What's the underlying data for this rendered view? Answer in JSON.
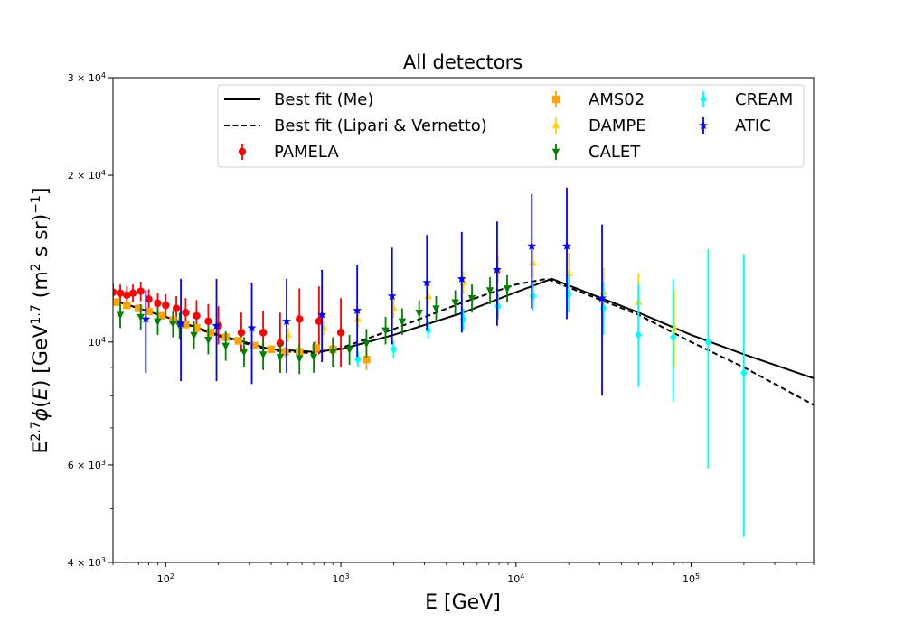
{
  "chart_data": {
    "type": "scatter",
    "title": "All detectors",
    "xlabel": "E [GeV]",
    "ylabel": "E^2.7 φ(E) [GeV^1.7 (m^2 s sr)^-1]",
    "xscale": "log",
    "yscale": "log",
    "xlim": [
      50,
      500000
    ],
    "ylim": [
      4000,
      30000
    ],
    "x_tick_labels": [
      "10^2",
      "10^3",
      "10^4",
      "10^5"
    ],
    "y_tick_labels": [
      "4 × 10^3",
      "6 × 10^3",
      "10^4",
      "2 × 10^4",
      "3 × 10^4"
    ],
    "grid": false,
    "legend_position": "top",
    "lines": [
      {
        "name": "Best fit (Me)",
        "style": "solid",
        "color": "#000000",
        "x": [
          50,
          100,
          200,
          400,
          700,
          1000,
          2000,
          5000,
          10000,
          16000,
          50000,
          100000,
          200000,
          500000
        ],
        "y": [
          11900,
          11100,
          10300,
          9700,
          9600,
          9700,
          10300,
          11300,
          12300,
          13000,
          11300,
          10300,
          9500,
          8600
        ]
      },
      {
        "name": "Best fit (Lipari & Vernetto)",
        "style": "dashed",
        "color": "#000000",
        "x": [
          50,
          100,
          200,
          400,
          700,
          1000,
          2000,
          5000,
          10000,
          15000,
          50000,
          100000,
          200000,
          500000
        ],
        "y": [
          11900,
          11100,
          10250,
          9650,
          9550,
          9750,
          10550,
          11800,
          12700,
          13000,
          11200,
          10000,
          9000,
          7700
        ]
      }
    ],
    "series": [
      {
        "name": "PAMELA",
        "color": "#ff0000",
        "marker": "circle",
        "points": [
          {
            "x": 50,
            "y": 12300,
            "lo": 11900,
            "hi": 12800
          },
          {
            "x": 55,
            "y": 12250,
            "lo": 11800,
            "hi": 12700
          },
          {
            "x": 60,
            "y": 12150,
            "lo": 11700,
            "hi": 12600
          },
          {
            "x": 65,
            "y": 12250,
            "lo": 11800,
            "hi": 12700
          },
          {
            "x": 72,
            "y": 12350,
            "lo": 11850,
            "hi": 12850
          },
          {
            "x": 80,
            "y": 11950,
            "lo": 11450,
            "hi": 12450
          },
          {
            "x": 90,
            "y": 11750,
            "lo": 11250,
            "hi": 12250
          },
          {
            "x": 100,
            "y": 11650,
            "lo": 11100,
            "hi": 12200
          },
          {
            "x": 115,
            "y": 11500,
            "lo": 10900,
            "hi": 12100
          },
          {
            "x": 130,
            "y": 11300,
            "lo": 10650,
            "hi": 12000
          },
          {
            "x": 150,
            "y": 11150,
            "lo": 10450,
            "hi": 11900
          },
          {
            "x": 175,
            "y": 10900,
            "lo": 10150,
            "hi": 11700
          },
          {
            "x": 200,
            "y": 10700,
            "lo": 9900,
            "hi": 11600
          },
          {
            "x": 270,
            "y": 10400,
            "lo": 9600,
            "hi": 11300
          },
          {
            "x": 360,
            "y": 10400,
            "lo": 9500,
            "hi": 11400
          },
          {
            "x": 450,
            "y": 9950,
            "lo": 8800,
            "hi": 11300
          },
          {
            "x": 580,
            "y": 11000,
            "lo": 9700,
            "hi": 12500
          },
          {
            "x": 750,
            "y": 10900,
            "lo": 9500,
            "hi": 12600
          },
          {
            "x": 1000,
            "y": 10400,
            "lo": 9000,
            "hi": 12000
          }
        ]
      },
      {
        "name": "AMS02",
        "color": "#ffa500",
        "marker": "square",
        "points": [
          {
            "x": 52,
            "y": 11800,
            "lo": 11700,
            "hi": 11900
          },
          {
            "x": 60,
            "y": 11650,
            "lo": 11550,
            "hi": 11750
          },
          {
            "x": 70,
            "y": 11500,
            "lo": 11400,
            "hi": 11600
          },
          {
            "x": 80,
            "y": 11350,
            "lo": 11250,
            "hi": 11450
          },
          {
            "x": 95,
            "y": 11150,
            "lo": 11050,
            "hi": 11250
          },
          {
            "x": 110,
            "y": 10950,
            "lo": 10850,
            "hi": 11050
          },
          {
            "x": 130,
            "y": 10750,
            "lo": 10650,
            "hi": 10850
          },
          {
            "x": 150,
            "y": 10600,
            "lo": 10500,
            "hi": 10700
          },
          {
            "x": 180,
            "y": 10400,
            "lo": 10300,
            "hi": 10500
          },
          {
            "x": 220,
            "y": 10200,
            "lo": 10100,
            "hi": 10300
          },
          {
            "x": 260,
            "y": 10050,
            "lo": 9950,
            "hi": 10150
          },
          {
            "x": 320,
            "y": 9850,
            "lo": 9700,
            "hi": 10000
          },
          {
            "x": 400,
            "y": 9700,
            "lo": 9550,
            "hi": 9850
          },
          {
            "x": 480,
            "y": 9600,
            "lo": 9400,
            "hi": 9800
          },
          {
            "x": 580,
            "y": 9600,
            "lo": 9350,
            "hi": 9850
          },
          {
            "x": 720,
            "y": 9750,
            "lo": 9450,
            "hi": 10050
          },
          {
            "x": 900,
            "y": 9700,
            "lo": 9350,
            "hi": 10050
          },
          {
            "x": 1400,
            "y": 9300,
            "lo": 8900,
            "hi": 9700
          }
        ]
      },
      {
        "name": "DAMPE",
        "color": "#ffd700",
        "marker": "triangle-up",
        "points": [
          {
            "x": 500,
            "y": 10300,
            "lo": 10000,
            "hi": 10600
          },
          {
            "x": 800,
            "y": 10600,
            "lo": 10250,
            "hi": 10950
          },
          {
            "x": 1250,
            "y": 11000,
            "lo": 10600,
            "hi": 11400
          },
          {
            "x": 2000,
            "y": 11500,
            "lo": 11050,
            "hi": 11950
          },
          {
            "x": 3150,
            "y": 12100,
            "lo": 11600,
            "hi": 12600
          },
          {
            "x": 5000,
            "y": 12800,
            "lo": 12200,
            "hi": 13400
          },
          {
            "x": 7900,
            "y": 13500,
            "lo": 12800,
            "hi": 14300
          },
          {
            "x": 12500,
            "y": 13900,
            "lo": 13000,
            "hi": 14900
          },
          {
            "x": 20000,
            "y": 13300,
            "lo": 12200,
            "hi": 14500
          },
          {
            "x": 31600,
            "y": 12300,
            "lo": 11100,
            "hi": 13600
          },
          {
            "x": 50000,
            "y": 11800,
            "lo": 10400,
            "hi": 13300
          },
          {
            "x": 80000,
            "y": 10600,
            "lo": 9000,
            "hi": 12400
          }
        ]
      },
      {
        "name": "CALET",
        "color": "#008000",
        "marker": "triangle-down",
        "points": [
          {
            "x": 55,
            "y": 11200,
            "lo": 10600,
            "hi": 11800
          },
          {
            "x": 72,
            "y": 11100,
            "lo": 10500,
            "hi": 11700
          },
          {
            "x": 90,
            "y": 10900,
            "lo": 10300,
            "hi": 11500
          },
          {
            "x": 110,
            "y": 10800,
            "lo": 10200,
            "hi": 11400
          },
          {
            "x": 120,
            "y": 10700,
            "lo": 10100,
            "hi": 11300
          },
          {
            "x": 145,
            "y": 10300,
            "lo": 9700,
            "hi": 10900
          },
          {
            "x": 175,
            "y": 10100,
            "lo": 9500,
            "hi": 10700
          },
          {
            "x": 220,
            "y": 9850,
            "lo": 9250,
            "hi": 10450
          },
          {
            "x": 280,
            "y": 9600,
            "lo": 9000,
            "hi": 10200
          },
          {
            "x": 360,
            "y": 9500,
            "lo": 8900,
            "hi": 10100
          },
          {
            "x": 450,
            "y": 9400,
            "lo": 8800,
            "hi": 10000
          },
          {
            "x": 580,
            "y": 9350,
            "lo": 8750,
            "hi": 9950
          },
          {
            "x": 700,
            "y": 9400,
            "lo": 8800,
            "hi": 10000
          },
          {
            "x": 900,
            "y": 9600,
            "lo": 9000,
            "hi": 10200
          },
          {
            "x": 1120,
            "y": 9700,
            "lo": 9100,
            "hi": 10300
          },
          {
            "x": 1400,
            "y": 9950,
            "lo": 9350,
            "hi": 10550
          },
          {
            "x": 1800,
            "y": 10500,
            "lo": 9900,
            "hi": 11100
          },
          {
            "x": 2240,
            "y": 10900,
            "lo": 10300,
            "hi": 11500
          },
          {
            "x": 2800,
            "y": 11300,
            "lo": 10700,
            "hi": 11900
          },
          {
            "x": 3500,
            "y": 11500,
            "lo": 10900,
            "hi": 12100
          },
          {
            "x": 4500,
            "y": 11800,
            "lo": 11200,
            "hi": 12400
          },
          {
            "x": 5600,
            "y": 12000,
            "lo": 11300,
            "hi": 12700
          },
          {
            "x": 7100,
            "y": 12400,
            "lo": 11700,
            "hi": 13100
          },
          {
            "x": 8900,
            "y": 12500,
            "lo": 11800,
            "hi": 13200
          }
        ]
      },
      {
        "name": "CREAM",
        "color": "#00ffff",
        "marker": "diamond",
        "points": [
          {
            "x": 1250,
            "y": 9300,
            "lo": 9000,
            "hi": 9600
          },
          {
            "x": 2000,
            "y": 9700,
            "lo": 9350,
            "hi": 10050
          },
          {
            "x": 3150,
            "y": 10500,
            "lo": 10100,
            "hi": 10900
          },
          {
            "x": 5000,
            "y": 11000,
            "lo": 10500,
            "hi": 11500
          },
          {
            "x": 7900,
            "y": 11600,
            "lo": 11000,
            "hi": 12200
          },
          {
            "x": 12500,
            "y": 12100,
            "lo": 11400,
            "hi": 12800
          },
          {
            "x": 20000,
            "y": 12200,
            "lo": 11300,
            "hi": 13200
          },
          {
            "x": 31600,
            "y": 11500,
            "lo": 10300,
            "hi": 12800
          },
          {
            "x": 50000,
            "y": 10300,
            "lo": 8300,
            "hi": 12700
          },
          {
            "x": 79000,
            "y": 10200,
            "lo": 7800,
            "hi": 13000
          },
          {
            "x": 125000,
            "y": 10000,
            "lo": 5900,
            "hi": 14700
          },
          {
            "x": 200000,
            "y": 8800,
            "lo": 4450,
            "hi": 14400
          }
        ]
      },
      {
        "name": "ATIC",
        "color": "#0000ff",
        "marker": "star",
        "points": [
          {
            "x": 77,
            "y": 11000,
            "lo": 8800,
            "hi": 12400
          },
          {
            "x": 122,
            "y": 10800,
            "lo": 8500,
            "hi": 13000
          },
          {
            "x": 195,
            "y": 10700,
            "lo": 8500,
            "hi": 13000
          },
          {
            "x": 310,
            "y": 10600,
            "lo": 8400,
            "hi": 12800
          },
          {
            "x": 490,
            "y": 10900,
            "lo": 8800,
            "hi": 13000
          },
          {
            "x": 780,
            "y": 11200,
            "lo": 9200,
            "hi": 13500
          },
          {
            "x": 1240,
            "y": 11400,
            "lo": 9400,
            "hi": 13800
          },
          {
            "x": 1960,
            "y": 12100,
            "lo": 9900,
            "hi": 14800
          },
          {
            "x": 3100,
            "y": 12800,
            "lo": 10500,
            "hi": 15600
          },
          {
            "x": 4900,
            "y": 13000,
            "lo": 10400,
            "hi": 15800
          },
          {
            "x": 7800,
            "y": 13500,
            "lo": 10700,
            "hi": 16500
          },
          {
            "x": 12300,
            "y": 14900,
            "lo": 11500,
            "hi": 18500
          },
          {
            "x": 19500,
            "y": 14900,
            "lo": 11000,
            "hi": 19000
          },
          {
            "x": 31000,
            "y": 12000,
            "lo": 8000,
            "hi": 16300
          }
        ]
      }
    ]
  }
}
